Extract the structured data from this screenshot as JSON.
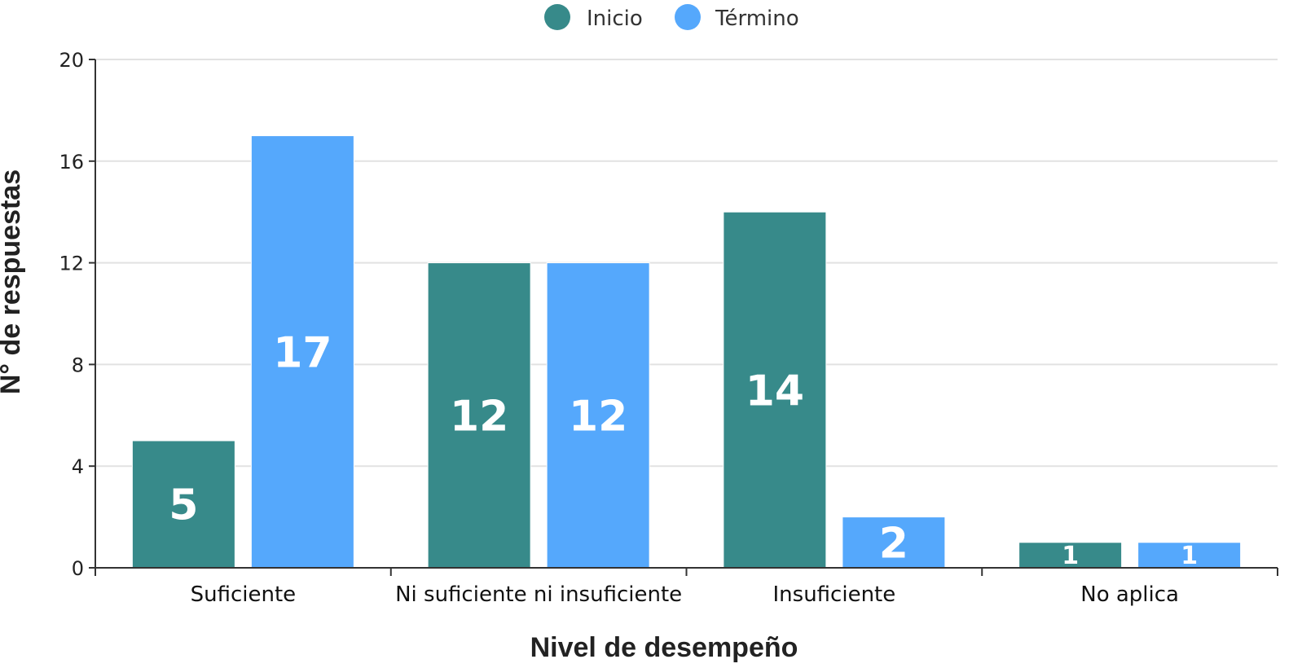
{
  "chart_data": {
    "type": "bar",
    "title": "",
    "xlabel": "Nivel de desempeño",
    "ylabel": "N° de respuestas",
    "categories": [
      "Suficiente",
      "Ni suficiente ni insuficiente",
      "Insuficiente",
      "No aplica"
    ],
    "series": [
      {
        "name": "Inicio",
        "color": "#378a8a",
        "values": [
          5,
          12,
          14,
          1
        ]
      },
      {
        "name": "Término",
        "color": "#55a8fc",
        "values": [
          17,
          12,
          2,
          1
        ]
      }
    ],
    "ylim": [
      0,
      20
    ],
    "yticks": [
      0,
      4,
      8,
      12,
      16,
      20
    ],
    "grid": true,
    "legend_position": "top-center",
    "data_labels": true
  }
}
